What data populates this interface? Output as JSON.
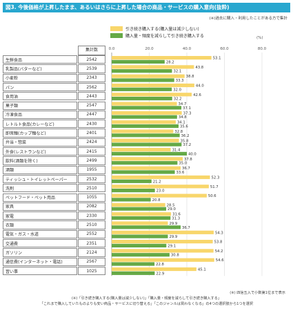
{
  "page": {
    "title": "図3. 今後価格が上昇したまま、あるいはさらに上昇した場合の商品・サービスの購入意向(抜粋)",
    "note": "(※)過去に購入・利用したことがある方で集計",
    "unit": "(%)",
    "count_header": "集計数",
    "footer_lines": [
      "(※) 四捨五入で小数第1位まで表示",
      "(※)「引き続き購入する(購入量は減少しない)」「購入量・頻度を減らして引き続き購入する」",
      "「これまで購入していたものよりも安い商品・サービスに切り替える」「このジャンルは買わなくなる」の4つの選択肢から1つを選択"
    ]
  },
  "colors": {
    "series1": "#f8d66b",
    "series2": "#65a946",
    "header": "#28a7cf"
  },
  "chart_data": {
    "type": "bar",
    "orientation": "horizontal",
    "xlim": [
      0,
      80
    ],
    "xticks": [
      "0.0",
      "20.0",
      "40.0",
      "60.0",
      "80.0"
    ],
    "legend_position": "top",
    "categories": [
      "生鮮食品",
      "乳製品(バターなど)",
      "小麦粉",
      "パン",
      "食用油",
      "菓子類",
      "冷凍食品",
      "レトルト食品(カレーなど)",
      "即席麺(カップ麺など)",
      "弁当・惣菜",
      "外食(レストランなど)",
      "飲料(酒類を除く)",
      "酒類",
      "ティッシュ・トイレットペーパー",
      "洗剤",
      "ペットフード・ペット用品",
      "家具",
      "家電",
      "衣類",
      "電気・ガス・水道",
      "交通費",
      "ガソリン",
      "通信費(インターネット・電話)",
      "習い事"
    ],
    "counts": [
      2542,
      2539,
      2343,
      2562,
      2443,
      2547,
      2447,
      2430,
      2401,
      2424,
      2415,
      2499,
      1955,
      2532,
      2510,
      1055,
      2082,
      2330,
      2510,
      2552,
      2351,
      2124,
      2567,
      1025
    ],
    "series": [
      {
        "name": "引き続き購入する(購入量は減少しない)",
        "values": [
          53.1,
          43.8,
          38.8,
          44.0,
          42.6,
          34.7,
          37.3,
          34.1,
          32.8,
          35.8,
          31.4,
          37.8,
          36.7,
          52.3,
          51.7,
          50.6,
          28.5,
          31.6,
          29.9,
          54.3,
          53.8,
          54.2,
          54.6,
          45.1
        ]
      },
      {
        "name": "購入量・頻度を減らして引き続き購入する",
        "values": [
          28.2,
          32.1,
          33.3,
          32.0,
          32.2,
          37.1,
          34.8,
          35.6,
          36.2,
          37.2,
          40.0,
          35.0,
          33.6,
          21.2,
          23.0,
          20.8,
          29.0,
          31.3,
          36.7,
          29.9,
          29.1,
          30.8,
          22.8,
          22.9
        ]
      }
    ]
  }
}
